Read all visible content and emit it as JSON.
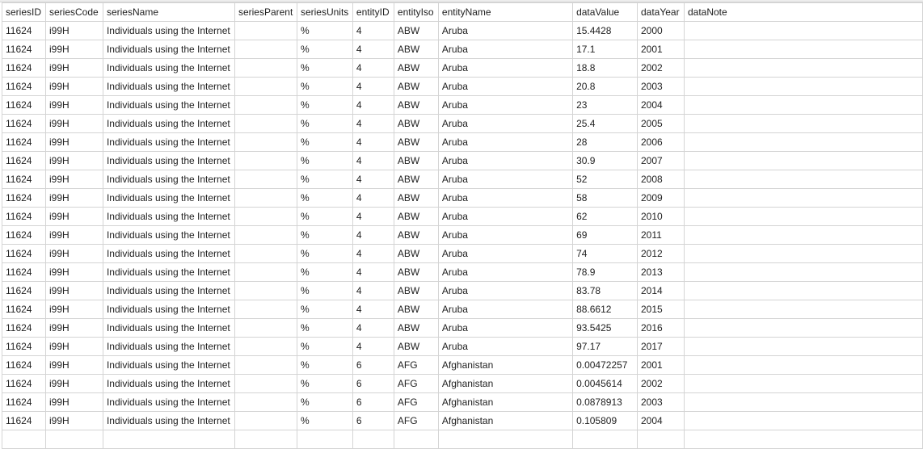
{
  "columns": [
    "seriesID",
    "seriesCode",
    "seriesName",
    "seriesParent",
    "seriesUnits",
    "entityID",
    "entityIso",
    "entityName",
    "dataValue",
    "dataYear",
    "dataNote"
  ],
  "rows": [
    [
      "11624",
      "i99H",
      "Individuals using the Internet",
      "",
      "%",
      "4",
      "ABW",
      "Aruba",
      "15.4428",
      "2000",
      ""
    ],
    [
      "11624",
      "i99H",
      "Individuals using the Internet",
      "",
      "%",
      "4",
      "ABW",
      "Aruba",
      "17.1",
      "2001",
      ""
    ],
    [
      "11624",
      "i99H",
      "Individuals using the Internet",
      "",
      "%",
      "4",
      "ABW",
      "Aruba",
      "18.8",
      "2002",
      ""
    ],
    [
      "11624",
      "i99H",
      "Individuals using the Internet",
      "",
      "%",
      "4",
      "ABW",
      "Aruba",
      "20.8",
      "2003",
      ""
    ],
    [
      "11624",
      "i99H",
      "Individuals using the Internet",
      "",
      "%",
      "4",
      "ABW",
      "Aruba",
      "23",
      "2004",
      ""
    ],
    [
      "11624",
      "i99H",
      "Individuals using the Internet",
      "",
      "%",
      "4",
      "ABW",
      "Aruba",
      "25.4",
      "2005",
      ""
    ],
    [
      "11624",
      "i99H",
      "Individuals using the Internet",
      "",
      "%",
      "4",
      "ABW",
      "Aruba",
      "28",
      "2006",
      ""
    ],
    [
      "11624",
      "i99H",
      "Individuals using the Internet",
      "",
      "%",
      "4",
      "ABW",
      "Aruba",
      "30.9",
      "2007",
      ""
    ],
    [
      "11624",
      "i99H",
      "Individuals using the Internet",
      "",
      "%",
      "4",
      "ABW",
      "Aruba",
      "52",
      "2008",
      ""
    ],
    [
      "11624",
      "i99H",
      "Individuals using the Internet",
      "",
      "%",
      "4",
      "ABW",
      "Aruba",
      "58",
      "2009",
      ""
    ],
    [
      "11624",
      "i99H",
      "Individuals using the Internet",
      "",
      "%",
      "4",
      "ABW",
      "Aruba",
      "62",
      "2010",
      ""
    ],
    [
      "11624",
      "i99H",
      "Individuals using the Internet",
      "",
      "%",
      "4",
      "ABW",
      "Aruba",
      "69",
      "2011",
      ""
    ],
    [
      "11624",
      "i99H",
      "Individuals using the Internet",
      "",
      "%",
      "4",
      "ABW",
      "Aruba",
      "74",
      "2012",
      ""
    ],
    [
      "11624",
      "i99H",
      "Individuals using the Internet",
      "",
      "%",
      "4",
      "ABW",
      "Aruba",
      "78.9",
      "2013",
      ""
    ],
    [
      "11624",
      "i99H",
      "Individuals using the Internet",
      "",
      "%",
      "4",
      "ABW",
      "Aruba",
      "83.78",
      "2014",
      ""
    ],
    [
      "11624",
      "i99H",
      "Individuals using the Internet",
      "",
      "%",
      "4",
      "ABW",
      "Aruba",
      "88.6612",
      "2015",
      ""
    ],
    [
      "11624",
      "i99H",
      "Individuals using the Internet",
      "",
      "%",
      "4",
      "ABW",
      "Aruba",
      "93.5425",
      "2016",
      ""
    ],
    [
      "11624",
      "i99H",
      "Individuals using the Internet",
      "",
      "%",
      "4",
      "ABW",
      "Aruba",
      "97.17",
      "2017",
      ""
    ],
    [
      "11624",
      "i99H",
      "Individuals using the Internet",
      "",
      "%",
      "6",
      "AFG",
      "Afghanistan",
      "0.00472257",
      "2001",
      ""
    ],
    [
      "11624",
      "i99H",
      "Individuals using the Internet",
      "",
      "%",
      "6",
      "AFG",
      "Afghanistan",
      "0.0045614",
      "2002",
      ""
    ],
    [
      "11624",
      "i99H",
      "Individuals using the Internet",
      "",
      "%",
      "6",
      "AFG",
      "Afghanistan",
      "0.0878913",
      "2003",
      ""
    ],
    [
      "11624",
      "i99H",
      "Individuals using the Internet",
      "",
      "%",
      "6",
      "AFG",
      "Afghanistan",
      "0.105809",
      "2004",
      ""
    ],
    [
      "",
      "",
      "",
      "",
      "",
      "",
      "",
      "",
      "",
      "",
      ""
    ]
  ]
}
